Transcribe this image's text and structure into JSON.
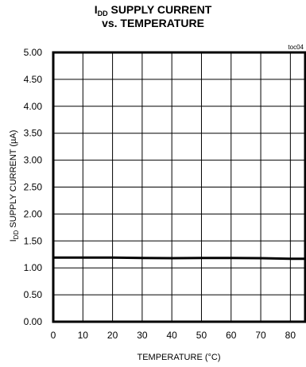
{
  "header": {
    "title_main_prefix": "I",
    "title_main_sub": "DD",
    "title_main_rest": " SUPPLY CURRENT",
    "title_line2": "vs. TEMPERATURE",
    "figure_tag": "toc04"
  },
  "chart_data": {
    "type": "line",
    "title": "IDD SUPPLY CURRENT vs. TEMPERATURE",
    "xlabel": "TEMPERATURE (°C)",
    "ylabel_prefix": "I",
    "ylabel_sub": "DD",
    "ylabel_rest": " SUPPLY CURRENT (µA)",
    "xlim": [
      0,
      85
    ],
    "ylim": [
      0,
      5
    ],
    "x_ticks": [
      "0",
      "10",
      "20",
      "30",
      "40",
      "50",
      "60",
      "70",
      "80"
    ],
    "y_ticks": [
      "0.00",
      "0.50",
      "1.00",
      "1.50",
      "2.00",
      "2.50",
      "3.00",
      "3.50",
      "4.00",
      "4.50",
      "5.00"
    ],
    "grid": true,
    "series": [
      {
        "x": [
          0,
          10,
          20,
          30,
          40,
          50,
          60,
          70,
          80,
          85
        ],
        "y": [
          1.19,
          1.19,
          1.19,
          1.185,
          1.18,
          1.185,
          1.185,
          1.18,
          1.17,
          1.17
        ]
      }
    ]
  }
}
